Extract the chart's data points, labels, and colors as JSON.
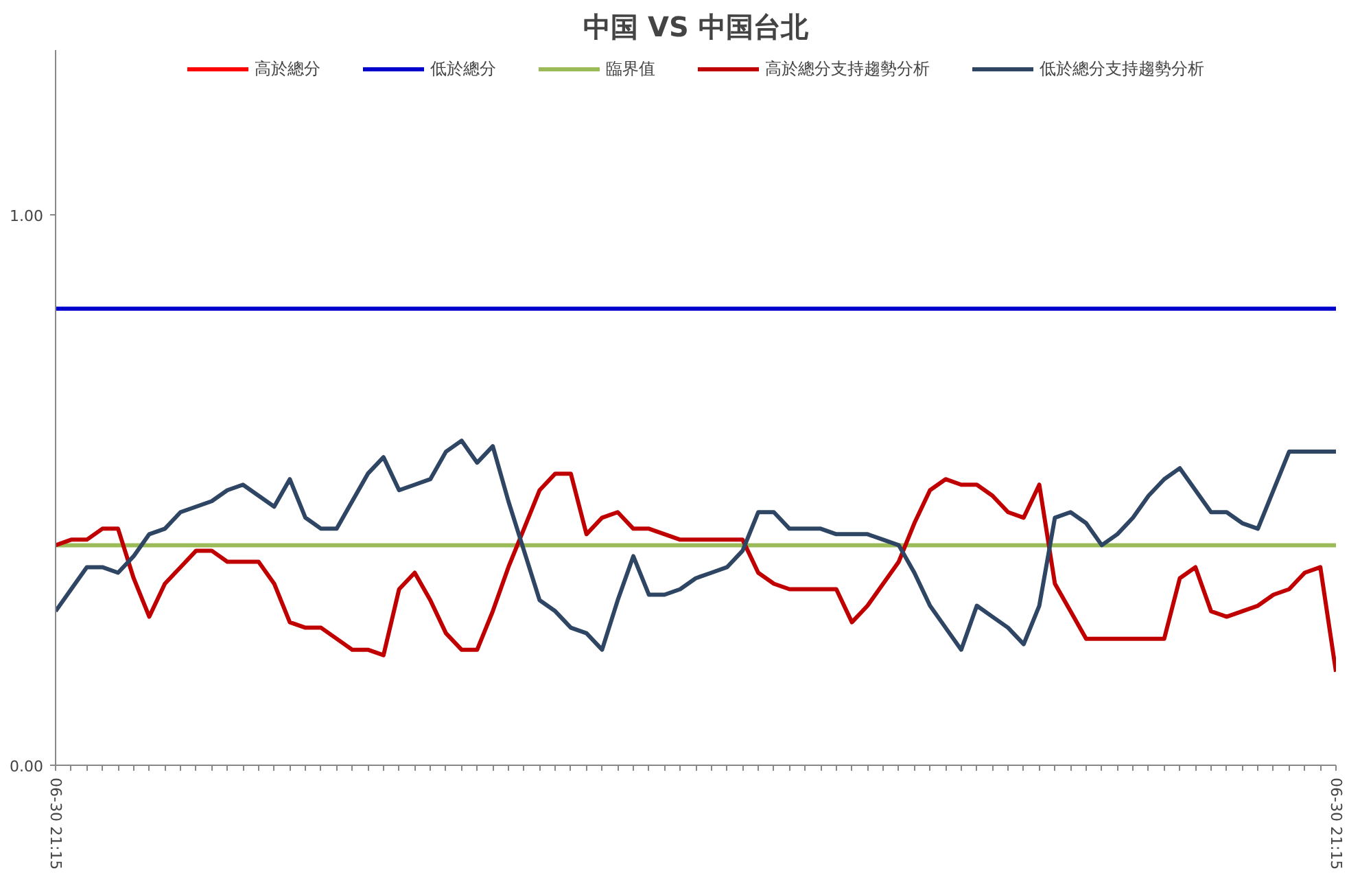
{
  "chart_data": {
    "type": "line",
    "title": "中国 VS 中国台北",
    "legend": "top",
    "grid": false,
    "marker": "none",
    "line_style": "solid",
    "ylim": [
      0,
      1.3
    ],
    "yticks": [
      {
        "value": 0,
        "label": "0.00"
      },
      {
        "value": 1,
        "label": "1.00"
      }
    ],
    "categories": [
      "06-30 21:15",
      null,
      null,
      null,
      null,
      null,
      null,
      null,
      null,
      null,
      null,
      null,
      null,
      null,
      null,
      null,
      null,
      null,
      null,
      null,
      null,
      null,
      null,
      null,
      null,
      null,
      null,
      null,
      null,
      null,
      null,
      null,
      null,
      null,
      null,
      null,
      null,
      null,
      null,
      null,
      null,
      null,
      null,
      null,
      null,
      null,
      null,
      null,
      null,
      null,
      null,
      null,
      null,
      null,
      null,
      null,
      null,
      null,
      null,
      null,
      null,
      null,
      null,
      null,
      null,
      null,
      null,
      null,
      null,
      null,
      null,
      null,
      null,
      null,
      null,
      null,
      null,
      null,
      null,
      null,
      null,
      null,
      "06-30 21:15"
    ],
    "series": [
      {
        "name": "高於總分",
        "color": "#ff0000",
        "values": [
          null,
          null,
          null,
          null,
          null,
          null,
          null,
          null,
          null,
          null,
          null,
          null,
          null,
          null,
          null,
          null,
          null,
          null,
          null,
          null,
          null,
          null,
          null,
          null,
          null,
          null,
          null,
          null,
          null,
          null,
          null,
          null,
          null,
          null,
          null,
          null,
          null,
          null,
          null,
          null,
          null,
          null,
          null,
          null,
          null,
          null,
          null,
          null,
          null,
          null,
          null,
          null,
          null,
          null,
          null,
          null,
          null,
          null,
          null,
          null,
          null,
          null,
          null,
          null,
          null,
          null,
          null,
          null,
          null,
          null,
          null,
          null,
          null,
          null,
          null,
          null,
          null,
          null,
          null,
          null,
          null,
          null,
          null
        ]
      },
      {
        "name": "低於總分",
        "color": "#0000cc",
        "values": [
          0.83,
          0.83,
          0.83,
          0.83,
          0.83,
          0.83,
          0.83,
          0.83,
          0.83,
          0.83,
          0.83,
          0.83,
          0.83,
          0.83,
          0.83,
          0.83,
          0.83,
          0.83,
          0.83,
          0.83,
          0.83,
          0.83,
          0.83,
          0.83,
          0.83,
          0.83,
          0.83,
          0.83,
          0.83,
          0.83,
          0.83,
          0.83,
          0.83,
          0.83,
          0.83,
          0.83,
          0.83,
          0.83,
          0.83,
          0.83,
          0.83,
          0.83,
          0.83,
          0.83,
          0.83,
          0.83,
          0.83,
          0.83,
          0.83,
          0.83,
          0.83,
          0.83,
          0.83,
          0.83,
          0.83,
          0.83,
          0.83,
          0.83,
          0.83,
          0.83,
          0.83,
          0.83,
          0.83,
          0.83,
          0.83,
          0.83,
          0.83,
          0.83,
          0.83,
          0.83,
          0.83,
          0.83,
          0.83,
          0.83,
          0.83,
          0.83,
          0.83,
          0.83,
          0.83,
          0.83,
          0.83,
          0.83,
          0.83
        ]
      },
      {
        "name": "臨界值",
        "color": "#9bbb59",
        "values": [
          0.4,
          0.4,
          0.4,
          0.4,
          0.4,
          0.4,
          0.4,
          0.4,
          0.4,
          0.4,
          0.4,
          0.4,
          0.4,
          0.4,
          0.4,
          0.4,
          0.4,
          0.4,
          0.4,
          0.4,
          0.4,
          0.4,
          0.4,
          0.4,
          0.4,
          0.4,
          0.4,
          0.4,
          0.4,
          0.4,
          0.4,
          0.4,
          0.4,
          0.4,
          0.4,
          0.4,
          0.4,
          0.4,
          0.4,
          0.4,
          0.4,
          0.4,
          0.4,
          0.4,
          0.4,
          0.4,
          0.4,
          0.4,
          0.4,
          0.4,
          0.4,
          0.4,
          0.4,
          0.4,
          0.4,
          0.4,
          0.4,
          0.4,
          0.4,
          0.4,
          0.4,
          0.4,
          0.4,
          0.4,
          0.4,
          0.4,
          0.4,
          0.4,
          0.4,
          0.4,
          0.4,
          0.4,
          0.4,
          0.4,
          0.4,
          0.4,
          0.4,
          0.4,
          0.4,
          0.4,
          0.4,
          0.4,
          0.4
        ]
      },
      {
        "name": "高於總分支持趨勢分析",
        "color": "#c00000",
        "values": [
          0.4,
          0.41,
          0.41,
          0.43,
          0.43,
          0.34,
          0.27,
          0.33,
          0.36,
          0.39,
          0.39,
          0.37,
          0.37,
          0.37,
          0.33,
          0.26,
          0.25,
          0.25,
          0.23,
          0.21,
          0.21,
          0.2,
          0.32,
          0.35,
          0.3,
          0.24,
          0.21,
          0.21,
          0.28,
          0.36,
          0.43,
          0.5,
          0.53,
          0.53,
          0.42,
          0.45,
          0.46,
          0.43,
          0.43,
          0.42,
          0.41,
          0.41,
          0.41,
          0.41,
          0.41,
          0.35,
          0.33,
          0.32,
          0.32,
          0.32,
          0.32,
          0.26,
          0.29,
          0.33,
          0.37,
          0.44,
          0.5,
          0.52,
          0.51,
          0.51,
          0.49,
          0.46,
          0.45,
          0.51,
          0.33,
          0.28,
          0.23,
          0.23,
          0.23,
          0.23,
          0.23,
          0.23,
          0.34,
          0.36,
          0.28,
          0.27,
          0.28,
          0.29,
          0.31,
          0.32,
          0.35,
          0.36,
          0.17
        ]
      },
      {
        "name": "低於總分支持趨勢分析",
        "color": "#2e4563",
        "values": [
          0.28,
          0.32,
          0.36,
          0.36,
          0.35,
          0.38,
          0.42,
          0.43,
          0.46,
          0.47,
          0.48,
          0.5,
          0.51,
          0.49,
          0.47,
          0.52,
          0.45,
          0.43,
          0.43,
          0.48,
          0.53,
          0.56,
          0.5,
          0.51,
          0.52,
          0.57,
          0.59,
          0.55,
          0.58,
          0.48,
          0.39,
          0.3,
          0.28,
          0.25,
          0.24,
          0.21,
          0.3,
          0.38,
          0.31,
          0.31,
          0.32,
          0.34,
          0.35,
          0.36,
          0.39,
          0.46,
          0.46,
          0.43,
          0.43,
          0.43,
          0.42,
          0.42,
          0.42,
          0.41,
          0.4,
          0.35,
          0.29,
          0.25,
          0.21,
          0.29,
          0.27,
          0.25,
          0.22,
          0.29,
          0.45,
          0.46,
          0.44,
          0.4,
          0.42,
          0.45,
          0.49,
          0.52,
          0.54,
          0.5,
          0.46,
          0.46,
          0.44,
          0.43,
          0.5,
          0.57,
          0.57,
          0.57,
          0.57
        ]
      }
    ]
  }
}
